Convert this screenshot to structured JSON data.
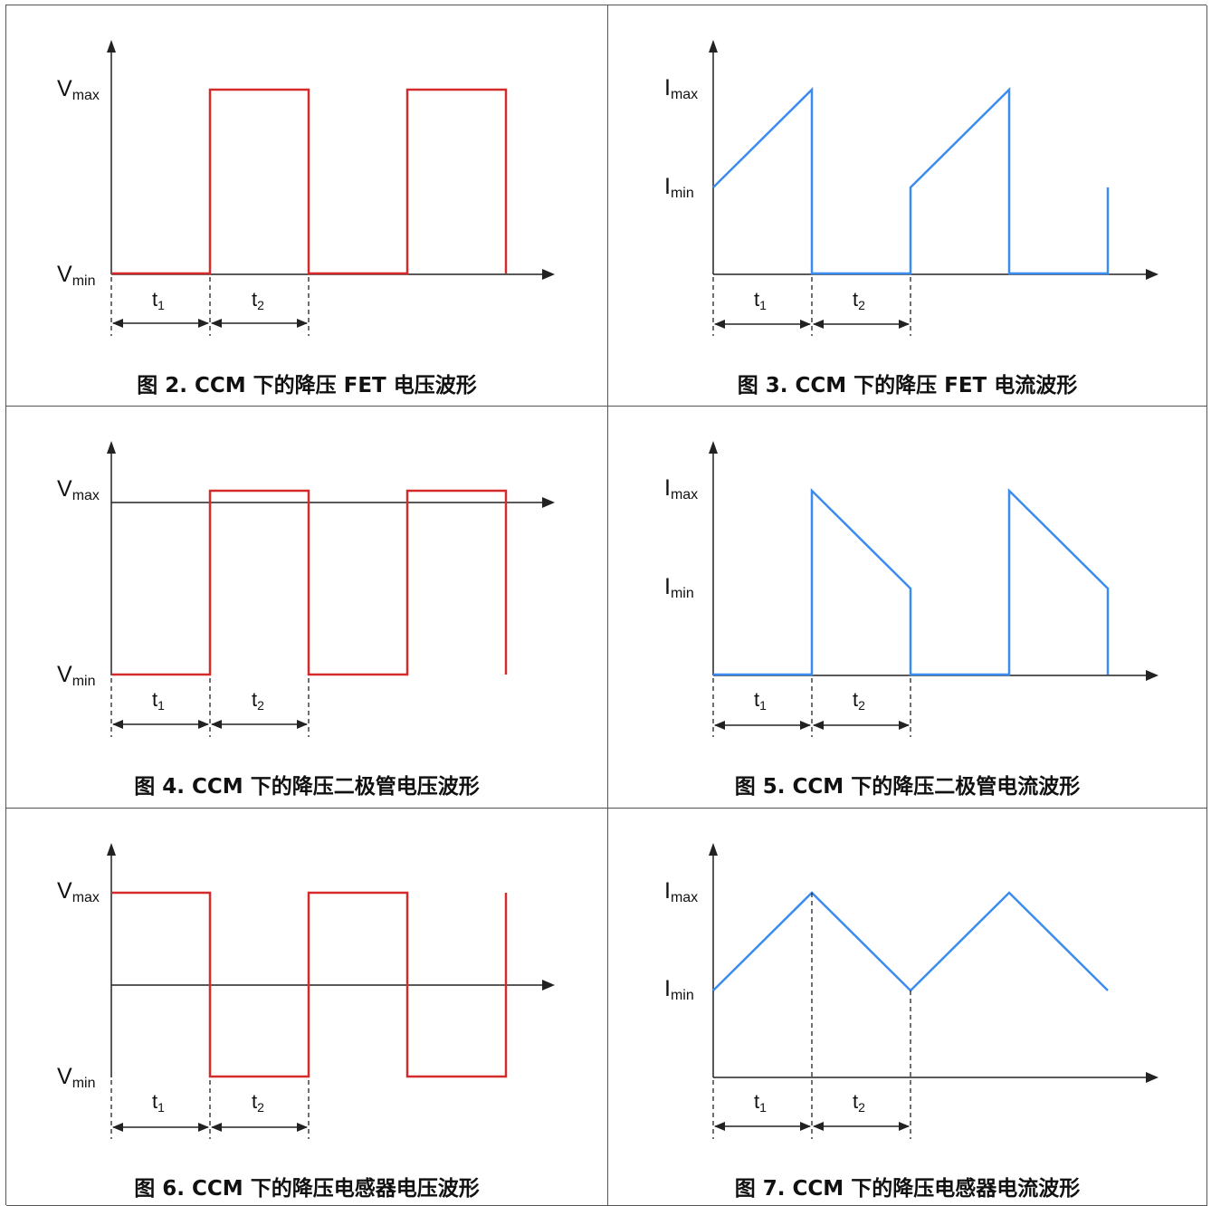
{
  "figures": [
    {
      "id": "fig2",
      "caption": "图 2. CCM 下的降压 FET 电压波形",
      "var": "V",
      "y_top_label_sub": "max",
      "y_bot_label_sub": "min",
      "color": "#d42a2a"
    },
    {
      "id": "fig3",
      "caption": "图 3. CCM 下的降压 FET 电流波形",
      "var": "I",
      "y_top_label_sub": "max",
      "y_mid_label_sub": "min",
      "color": "#3b8cf0"
    },
    {
      "id": "fig4",
      "caption": "图 4. CCM 下的降压二极管电压波形",
      "var": "V",
      "y_top_label_sub": "max",
      "y_bot_label_sub": "min",
      "color": "#d42a2a"
    },
    {
      "id": "fig5",
      "caption": "图 5. CCM 下的降压二极管电流波形",
      "var": "I",
      "y_top_label_sub": "max",
      "y_mid_label_sub": "min",
      "color": "#3b8cf0"
    },
    {
      "id": "fig6",
      "caption": "图 6. CCM 下的降压电感器电压波形",
      "var": "V",
      "y_top_label_sub": "max",
      "y_bot_label_sub": "min",
      "color": "#d42a2a"
    },
    {
      "id": "fig7",
      "caption": "图 7. CCM 下的降压电感器电流波形",
      "var": "I",
      "y_top_label_sub": "max",
      "y_mid_label_sub": "min",
      "color": "#3b8cf0"
    }
  ],
  "time_labels": {
    "t1": "t",
    "t1_sub": "1",
    "t2": "t",
    "t2_sub": "2"
  }
}
